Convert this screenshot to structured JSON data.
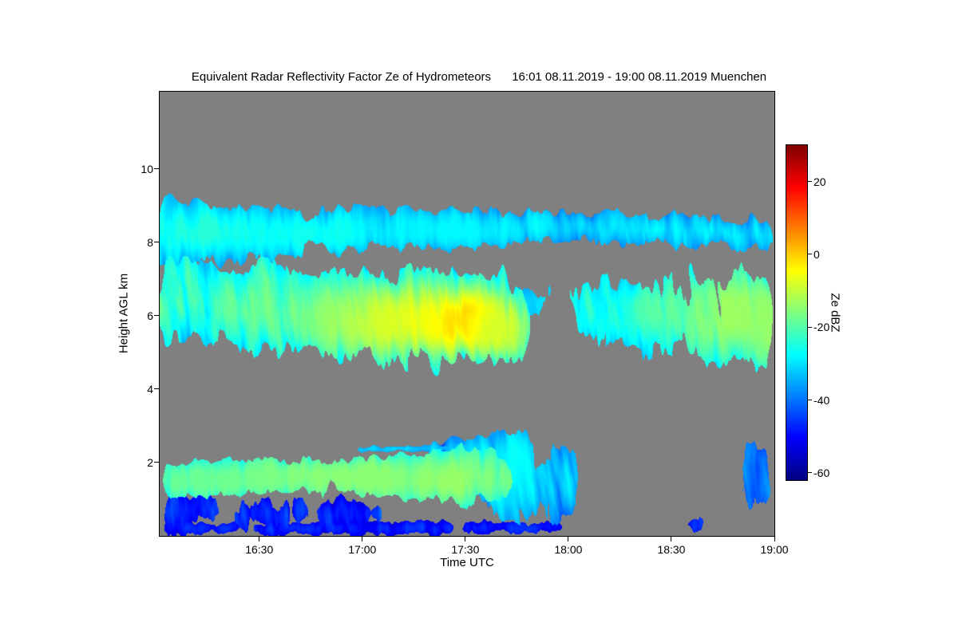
{
  "chart_data": {
    "type": "heatmap",
    "title": "Equivalent Radar Reflectivity Factor Ze of Hydrometeors",
    "subtitle": "16:01 08.11.2019 - 19:00 08.11.2019 Muenchen",
    "xlabel": "Time UTC",
    "ylabel": "Height AGL km",
    "x_start_label": "16:01",
    "x_end_label": "19:00",
    "x_end_min": 179,
    "x_ticks": [
      {
        "label": "16:30",
        "min": 29
      },
      {
        "label": "17:00",
        "min": 59
      },
      {
        "label": "17:30",
        "min": 89
      },
      {
        "label": "18:00",
        "min": 119
      },
      {
        "label": "18:30",
        "min": 149
      },
      {
        "label": "19:00",
        "min": 179
      }
    ],
    "y_min_km": 0,
    "y_max_km": 12.1,
    "y_ticks": [
      2,
      4,
      6,
      8,
      10
    ],
    "no_data_color": "#808080",
    "colorbar": {
      "label": "Ze dBZ",
      "min": -62,
      "max": 30,
      "ticks": [
        20,
        0,
        -20,
        -40,
        -60
      ],
      "colormap": "jet"
    },
    "layers": [
      {
        "name": "cirrus-band",
        "t0": 0,
        "t1": 179,
        "top": [
          [
            0,
            9.35
          ],
          [
            15,
            9.0
          ],
          [
            40,
            8.95
          ],
          [
            70,
            8.9
          ],
          [
            100,
            8.8
          ],
          [
            120,
            8.8
          ],
          [
            150,
            8.75
          ],
          [
            179,
            8.6
          ]
        ],
        "base": [
          [
            0,
            7.1
          ],
          [
            15,
            7.5
          ],
          [
            40,
            7.7
          ],
          [
            70,
            7.8
          ],
          [
            100,
            7.9
          ],
          [
            118,
            8.05
          ],
          [
            150,
            7.95
          ],
          [
            179,
            7.75
          ]
        ],
        "edge_amp": 0.28,
        "dbz_min": -42,
        "dbz_max": -25,
        "gap": 0.12,
        "slant": 1.2,
        "cores": [
          {
            "t": 14,
            "h": 8.3,
            "st": 10,
            "sh": 0.45,
            "dbz": -24
          },
          {
            "t": 45,
            "h": 8.2,
            "st": 12,
            "sh": 0.35,
            "dbz": -26
          },
          {
            "t": 86,
            "h": 8.35,
            "st": 14,
            "sh": 0.3,
            "dbz": -28
          }
        ]
      },
      {
        "name": "midlevel-band-early",
        "t0": 0,
        "t1": 108,
        "top": [
          [
            0,
            7.6
          ],
          [
            20,
            7.4
          ],
          [
            45,
            7.25
          ],
          [
            70,
            7.2
          ],
          [
            88,
            7.3
          ],
          [
            100,
            7.05
          ],
          [
            108,
            6.5
          ]
        ],
        "base": [
          [
            0,
            5.4
          ],
          [
            25,
            5.15
          ],
          [
            45,
            5.0
          ],
          [
            65,
            4.85
          ],
          [
            82,
            4.65
          ],
          [
            95,
            4.8
          ],
          [
            108,
            5.1
          ]
        ],
        "edge_amp": 0.45,
        "dbz_min": -38,
        "dbz_max": -15,
        "gap": 0.1,
        "slant": 2.5,
        "cores": [
          {
            "t": 50,
            "h": 6.0,
            "st": 16,
            "sh": 0.7,
            "dbz": -16
          },
          {
            "t": 68,
            "h": 5.85,
            "st": 12,
            "sh": 0.55,
            "dbz": -11
          },
          {
            "t": 82,
            "h": 5.85,
            "st": 14,
            "sh": 0.6,
            "dbz": -6
          },
          {
            "t": 91,
            "h": 5.8,
            "st": 6,
            "sh": 0.45,
            "dbz": 1
          },
          {
            "t": 97,
            "h": 5.6,
            "st": 5,
            "sh": 0.5,
            "dbz": -8
          }
        ]
      },
      {
        "name": "midlevel-fragments",
        "t0": 100,
        "t1": 118,
        "top": [
          [
            100,
            6.9
          ],
          [
            108,
            6.8
          ],
          [
            118,
            7.1
          ]
        ],
        "base": [
          [
            100,
            5.5
          ],
          [
            108,
            5.6
          ],
          [
            118,
            6.2
          ]
        ],
        "edge_amp": 0.4,
        "dbz_min": -40,
        "dbz_max": -28,
        "gap": 0.5,
        "slant": 2.0,
        "cores": []
      },
      {
        "name": "midlevel-band-late",
        "t0": 112,
        "t1": 179,
        "top": [
          [
            112,
            7.2
          ],
          [
            122,
            6.8
          ],
          [
            132,
            7.0
          ],
          [
            147,
            7.1
          ],
          [
            162,
            7.0
          ],
          [
            179,
            7.2
          ]
        ],
        "base": [
          [
            112,
            6.1
          ],
          [
            122,
            5.5
          ],
          [
            132,
            5.15
          ],
          [
            147,
            4.95
          ],
          [
            162,
            4.8
          ],
          [
            179,
            4.55
          ]
        ],
        "edge_amp": 0.5,
        "dbz_min": -38,
        "dbz_max": -20,
        "gap": 0.2,
        "slant": 2.5,
        "sparse": [
          130,
          0.22
        ],
        "cores": [
          {
            "t": 150,
            "h": 6.2,
            "st": 10,
            "sh": 0.5,
            "dbz": -20
          },
          {
            "t": 170,
            "h": 6.0,
            "st": 12,
            "sh": 0.8,
            "dbz": -13
          },
          {
            "t": 179,
            "h": 5.6,
            "st": 8,
            "sh": 0.7,
            "dbz": -14
          }
        ]
      },
      {
        "name": "boundary-layer-main",
        "t0": 0,
        "t1": 103,
        "top": [
          [
            0,
            2.0
          ],
          [
            30,
            2.05
          ],
          [
            55,
            2.1
          ],
          [
            75,
            2.25
          ],
          [
            88,
            2.45
          ],
          [
            97,
            2.3
          ],
          [
            103,
            2.0
          ]
        ],
        "base": [
          [
            0,
            1.05
          ],
          [
            30,
            1.15
          ],
          [
            55,
            1.2
          ],
          [
            75,
            1.05
          ],
          [
            90,
            0.85
          ],
          [
            103,
            0.95
          ]
        ],
        "edge_amp": 0.22,
        "dbz_min": -32,
        "dbz_max": -14,
        "gap": 0.1,
        "slant": 1.0,
        "cores": [
          {
            "t": 22,
            "h": 1.5,
            "st": 15,
            "sh": 0.3,
            "dbz": -18
          },
          {
            "t": 55,
            "h": 1.6,
            "st": 18,
            "sh": 0.35,
            "dbz": -15
          },
          {
            "t": 85,
            "h": 1.5,
            "st": 10,
            "sh": 0.4,
            "dbz": -14
          }
        ]
      },
      {
        "name": "boundary-layer-plume",
        "t0": 78,
        "t1": 123,
        "top": [
          [
            78,
            2.35
          ],
          [
            88,
            2.6
          ],
          [
            96,
            2.8
          ],
          [
            105,
            2.85
          ],
          [
            113,
            2.6
          ],
          [
            123,
            2.1
          ]
        ],
        "base": [
          [
            78,
            1.7
          ],
          [
            90,
            1.1
          ],
          [
            100,
            0.5
          ],
          [
            108,
            0.25
          ],
          [
            116,
            0.35
          ],
          [
            123,
            0.6
          ]
        ],
        "edge_amp": 0.3,
        "dbz_min": -48,
        "dbz_max": -26,
        "gap": 0.18,
        "slant": 3.0,
        "cores": [
          {
            "t": 100,
            "h": 1.8,
            "st": 8,
            "sh": 0.8,
            "dbz": -27
          }
        ]
      },
      {
        "name": "elevated-thin-line",
        "t0": 56,
        "t1": 97,
        "top": [
          [
            56,
            2.42
          ],
          [
            75,
            2.45
          ],
          [
            97,
            2.5
          ]
        ],
        "base": [
          [
            56,
            2.28
          ],
          [
            75,
            2.3
          ],
          [
            97,
            2.35
          ]
        ],
        "edge_amp": 0.06,
        "dbz_min": -38,
        "dbz_max": -30,
        "gap": 0.3,
        "slant": 0.5,
        "cores": []
      },
      {
        "name": "late-thin-bits",
        "t0": 145,
        "t1": 160,
        "top": [
          [
            145,
            2.45
          ],
          [
            160,
            2.5
          ]
        ],
        "base": [
          [
            145,
            2.25
          ],
          [
            160,
            2.3
          ]
        ],
        "edge_amp": 0.08,
        "dbz_min": -40,
        "dbz_max": -32,
        "gap": 0.55,
        "slant": 0.5,
        "cores": []
      },
      {
        "name": "surface-noise-left",
        "t0": 0,
        "t1": 66,
        "top": [
          [
            0,
            1.35
          ],
          [
            20,
            1.25
          ],
          [
            40,
            1.15
          ],
          [
            55,
            1.05
          ],
          [
            66,
            0.9
          ]
        ],
        "base": [
          [
            0,
            0.05
          ],
          [
            66,
            0.05
          ]
        ],
        "edge_amp": 0.25,
        "dbz_min": -62,
        "dbz_max": -40,
        "gap": 0.34,
        "slant": 1.5,
        "cores": []
      },
      {
        "name": "surface-strip",
        "t0": 0,
        "t1": 119,
        "top": [
          [
            0,
            0.4
          ],
          [
            60,
            0.35
          ],
          [
            119,
            0.4
          ]
        ],
        "base": [
          [
            0,
            0.02
          ],
          [
            119,
            0.02
          ]
        ],
        "edge_amp": 0.15,
        "dbz_min": -58,
        "dbz_max": -44,
        "gap": 0.25,
        "slant": 1.0,
        "cores": []
      },
      {
        "name": "surface-patches-late",
        "t0": 119,
        "t1": 167,
        "top": [
          [
            119,
            0.8
          ],
          [
            135,
            0.6
          ],
          [
            150,
            0.7
          ],
          [
            167,
            0.6
          ]
        ],
        "base": [
          [
            119,
            0.05
          ],
          [
            167,
            0.05
          ]
        ],
        "edge_amp": 0.2,
        "dbz_min": -56,
        "dbz_max": -44,
        "gap": 0.6,
        "slant": 1.0,
        "cores": []
      },
      {
        "name": "right-edge-cluster",
        "t0": 166,
        "t1": 179,
        "top": [
          [
            166,
            2.4
          ],
          [
            172,
            2.7
          ],
          [
            179,
            2.5
          ]
        ],
        "base": [
          [
            166,
            0.5
          ],
          [
            172,
            0.4
          ],
          [
            179,
            0.45
          ]
        ],
        "edge_amp": 0.3,
        "dbz_min": -52,
        "dbz_max": -34,
        "gap": 0.42,
        "slant": 2.0,
        "cores": []
      }
    ]
  }
}
